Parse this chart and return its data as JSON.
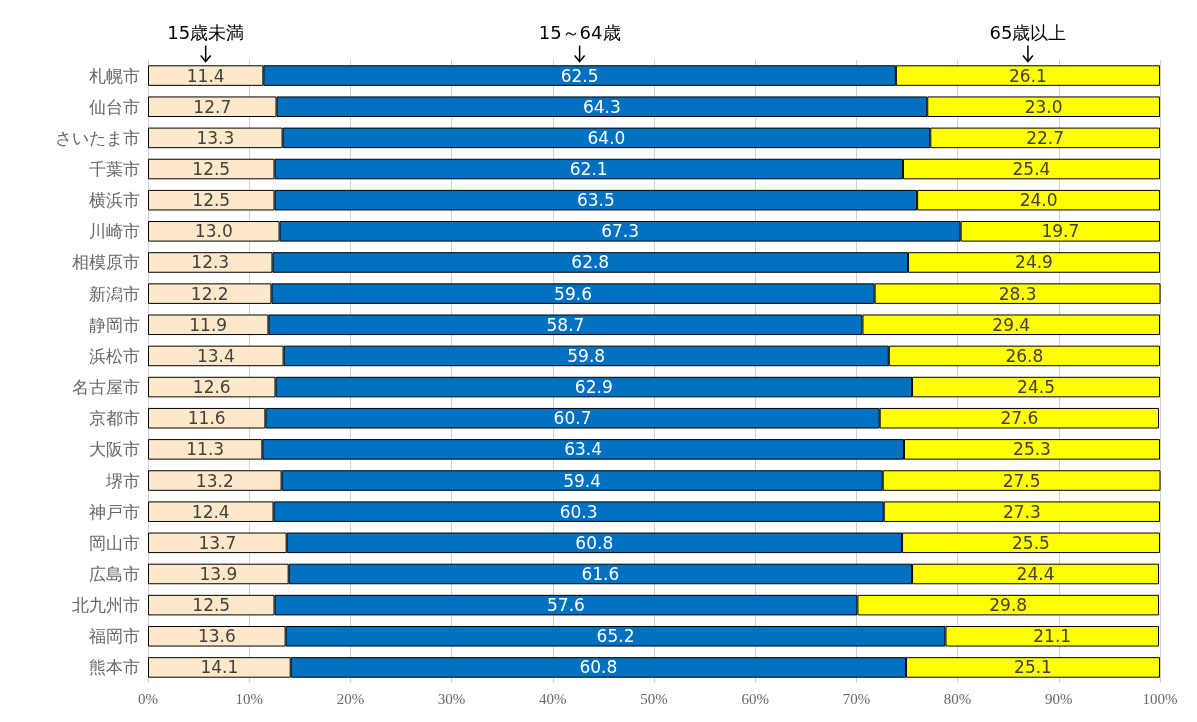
{
  "chart_data": {
    "type": "bar",
    "orientation": "horizontal",
    "stacked": true,
    "grid": "x",
    "legend": false,
    "categories": [
      "札幌市",
      "仙台市",
      "さいたま市",
      "千葉市",
      "横浜市",
      "川崎市",
      "相模原市",
      "新潟市",
      "静岡市",
      "浜松市",
      "名古屋市",
      "京都市",
      "大阪市",
      "堺市",
      "神戸市",
      "岡山市",
      "広島市",
      "北九州市",
      "福岡市",
      "熊本市"
    ],
    "xlim": [
      0,
      100
    ],
    "xticks": [
      {
        "value": 0,
        "label": "0%"
      },
      {
        "value": 10,
        "label": "10%"
      },
      {
        "value": 20,
        "label": "20%"
      },
      {
        "value": 30,
        "label": "30%"
      },
      {
        "value": 40,
        "label": "40%"
      },
      {
        "value": 50,
        "label": "50%"
      },
      {
        "value": 60,
        "label": "60%"
      },
      {
        "value": 70,
        "label": "70%"
      },
      {
        "value": 80,
        "label": "80%"
      },
      {
        "value": 90,
        "label": "90%"
      },
      {
        "value": 100,
        "label": "100%"
      }
    ],
    "series": [
      {
        "name": "15歳未満",
        "color": "#fde9c9",
        "values": [
          11.4,
          12.7,
          13.3,
          12.5,
          12.5,
          13.0,
          12.3,
          12.2,
          11.9,
          13.4,
          12.6,
          11.6,
          11.3,
          13.2,
          12.4,
          13.7,
          13.9,
          12.5,
          13.6,
          14.1
        ],
        "value_labels": [
          "11.4",
          "12.7",
          "13.3",
          "12.5",
          "12.5",
          "13.0",
          "12.3",
          "12.2",
          "11.9",
          "13.4",
          "12.6",
          "11.6",
          "11.3",
          "13.2",
          "12.4",
          "13.7",
          "13.9",
          "12.5",
          "13.6",
          "14.1"
        ]
      },
      {
        "name": "15～64歳",
        "color": "#0070c0",
        "values": [
          62.5,
          64.3,
          64.0,
          62.1,
          63.5,
          67.3,
          62.8,
          59.6,
          58.7,
          59.8,
          62.9,
          60.7,
          63.4,
          59.4,
          60.3,
          60.8,
          61.6,
          57.6,
          65.2,
          60.8
        ],
        "value_labels": [
          "62.5",
          "64.3",
          "64.0",
          "62.1",
          "63.5",
          "67.3",
          "62.8",
          "59.6",
          "58.7",
          "59.8",
          "62.9",
          "60.7",
          "63.4",
          "59.4",
          "60.3",
          "60.8",
          "61.6",
          "57.6",
          "65.2",
          "60.8"
        ]
      },
      {
        "name": "65歳以上",
        "color": "#ffff00",
        "values": [
          26.1,
          23.0,
          22.7,
          25.4,
          24.0,
          19.7,
          24.9,
          28.3,
          29.4,
          26.8,
          24.5,
          27.6,
          25.3,
          27.5,
          27.3,
          25.5,
          24.4,
          29.8,
          21.1,
          25.1
        ],
        "value_labels": [
          "26.1",
          "23.0",
          "22.7",
          "25.4",
          "24.0",
          "19.7",
          "24.9",
          "28.3",
          "29.4",
          "26.8",
          "24.5",
          "27.6",
          "25.3",
          "27.5",
          "27.3",
          "25.5",
          "24.4",
          "29.8",
          "21.1",
          "25.1"
        ]
      }
    ]
  }
}
